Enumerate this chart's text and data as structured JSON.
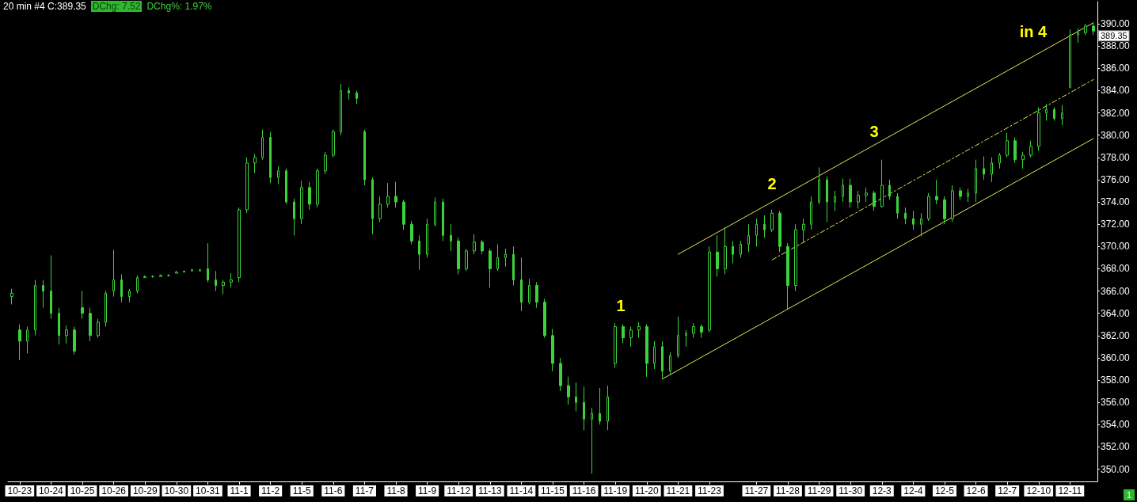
{
  "chart_data": {
    "type": "candlestick",
    "title": "20 min #4 C:389.35",
    "subtitle": "DChg: 7.52",
    "color": "#3cd23c",
    "categories": [
      null,
      "10-23",
      null,
      null,
      null,
      "10-24",
      null,
      null,
      null,
      "10-25",
      null,
      null,
      null,
      "10-26",
      null,
      null,
      null,
      "10-29",
      null,
      null,
      null,
      "10-30",
      null,
      null,
      null,
      "10-31",
      null,
      null,
      null,
      "11-1",
      null,
      null,
      null,
      "11-2",
      null,
      null,
      null,
      "11-5",
      null,
      null,
      null,
      "11-6",
      null,
      null,
      null,
      "11-7",
      null,
      null,
      null,
      "11-8",
      null,
      null,
      null,
      "11-9",
      null,
      null,
      null,
      "11-12",
      null,
      null,
      null,
      "11-13",
      null,
      null,
      null,
      "11-14",
      null,
      null,
      null,
      "11-15",
      null,
      null,
      null,
      "11-16",
      null,
      null,
      null,
      "11-19",
      null,
      null,
      null,
      "11-20",
      null,
      null,
      null,
      "11-21",
      null,
      null,
      null,
      "11-23",
      null,
      null,
      null,
      null,
      null,
      "11-27",
      null,
      null,
      null,
      "11-28",
      null,
      null,
      null,
      "11-29",
      null,
      null,
      null,
      "11-30",
      null,
      null,
      null,
      "12-3",
      null,
      null,
      null,
      "12-4",
      null,
      null,
      null,
      "12-5",
      null,
      null,
      null,
      "12-6",
      null,
      null,
      null,
      "12-7",
      null,
      null,
      null,
      "12-10",
      null,
      null,
      null,
      "12-11",
      null,
      null,
      null
    ],
    "ohlc": [
      [
        365.5,
        366.2,
        364.8,
        365.8
      ],
      [
        362.5,
        363.0,
        359.8,
        361.5
      ],
      [
        361.5,
        362.8,
        360.4,
        362.5
      ],
      [
        362.5,
        367.0,
        362.0,
        366.5
      ],
      [
        366.5,
        367.0,
        364.5,
        366.0
      ],
      [
        366.0,
        369.2,
        363.5,
        364.0
      ],
      [
        364.0,
        364.5,
        361.2,
        362.0
      ],
      [
        362.0,
        362.9,
        361.3,
        362.5
      ],
      [
        362.5,
        362.8,
        360.3,
        360.6
      ],
      [
        364.5,
        366.0,
        363.5,
        364.0
      ],
      [
        364.0,
        364.5,
        361.5,
        362.0
      ],
      [
        362.0,
        363.5,
        361.8,
        363.2
      ],
      [
        363.2,
        366.0,
        362.8,
        365.8
      ],
      [
        366.0,
        369.7,
        365.5,
        367.0
      ],
      [
        367.0,
        367.5,
        365.0,
        365.5
      ],
      [
        365.5,
        366.2,
        365.0,
        366.0
      ],
      [
        366.0,
        367.4,
        365.8,
        367.2
      ],
      [
        367.2,
        367.4,
        367.2,
        367.3
      ],
      [
        367.3,
        367.4,
        367.2,
        367.3
      ],
      [
        367.3,
        367.5,
        367.3,
        367.4
      ],
      [
        367.4,
        367.5,
        367.3,
        367.4
      ],
      [
        367.6,
        367.8,
        367.6,
        367.7
      ],
      [
        367.7,
        367.8,
        367.7,
        367.8
      ],
      [
        367.8,
        368.0,
        367.8,
        367.9
      ],
      [
        367.8,
        368.0,
        367.8,
        367.9
      ],
      [
        368.0,
        370.3,
        366.8,
        367.0
      ],
      [
        367.0,
        367.8,
        366.0,
        366.5
      ],
      [
        366.5,
        367.0,
        365.7,
        366.8
      ],
      [
        366.8,
        367.6,
        366.3,
        367.0
      ],
      [
        367.2,
        373.5,
        366.8,
        373.3
      ],
      [
        373.3,
        378.0,
        373.0,
        377.5
      ],
      [
        377.5,
        378.3,
        376.6,
        378.0
      ],
      [
        378.0,
        380.5,
        377.8,
        379.8
      ],
      [
        379.8,
        380.3,
        375.7,
        376.2
      ],
      [
        376.2,
        377.2,
        375.6,
        376.8
      ],
      [
        376.8,
        377.0,
        373.8,
        374.0
      ],
      [
        374.0,
        374.3,
        371.0,
        372.5
      ],
      [
        372.5,
        375.9,
        372.0,
        375.3
      ],
      [
        375.3,
        375.8,
        373.3,
        373.8
      ],
      [
        373.8,
        377.0,
        373.5,
        376.8
      ],
      [
        376.8,
        378.5,
        376.5,
        378.2
      ],
      [
        378.2,
        380.5,
        378.0,
        380.3
      ],
      [
        380.3,
        384.6,
        380.0,
        384.0
      ],
      [
        384.0,
        384.3,
        383.2,
        383.8
      ],
      [
        383.8,
        384.0,
        382.8,
        383.3
      ],
      [
        380.3,
        380.5,
        375.5,
        376.0
      ],
      [
        376.0,
        376.2,
        371.1,
        372.5
      ],
      [
        372.5,
        374.5,
        372.2,
        373.8
      ],
      [
        373.8,
        375.7,
        373.5,
        374.5
      ],
      [
        374.5,
        375.8,
        373.5,
        374.0
      ],
      [
        374.0,
        374.2,
        371.5,
        372.0
      ],
      [
        372.0,
        372.3,
        370.2,
        370.5
      ],
      [
        370.5,
        371.0,
        367.9,
        369.3
      ],
      [
        369.3,
        372.5,
        369.0,
        372.0
      ],
      [
        372.0,
        374.4,
        371.8,
        374.0
      ],
      [
        374.0,
        374.3,
        370.5,
        371.0
      ],
      [
        371.0,
        372.0,
        369.6,
        370.5
      ],
      [
        370.5,
        370.8,
        367.5,
        368.0
      ],
      [
        368.0,
        369.8,
        367.8,
        369.6
      ],
      [
        369.6,
        371.1,
        369.3,
        370.4
      ],
      [
        370.4,
        370.6,
        369.3,
        369.6
      ],
      [
        369.6,
        369.8,
        366.3,
        368.0
      ],
      [
        368.0,
        370.2,
        367.8,
        369.0
      ],
      [
        369.0,
        369.8,
        368.2,
        369.3
      ],
      [
        369.3,
        370.0,
        366.5,
        367.0
      ],
      [
        367.0,
        369.0,
        364.2,
        365.0
      ],
      [
        365.0,
        367.1,
        364.8,
        366.5
      ],
      [
        366.5,
        366.8,
        364.5,
        365.0
      ],
      [
        365.0,
        365.3,
        361.8,
        362.0
      ],
      [
        362.0,
        362.6,
        358.8,
        359.5
      ],
      [
        359.5,
        360.0,
        357.0,
        357.5
      ],
      [
        357.5,
        358.3,
        355.8,
        356.5
      ],
      [
        356.5,
        357.8,
        355.2,
        356.0
      ],
      [
        356.0,
        357.4,
        353.5,
        354.5
      ],
      [
        354.5,
        355.5,
        349.6,
        355.0
      ],
      [
        355.0,
        357.3,
        354.0,
        354.3
      ],
      [
        354.3,
        357.5,
        353.5,
        356.5
      ],
      [
        359.5,
        363.1,
        359.1,
        362.8
      ],
      [
        362.8,
        363.0,
        361.3,
        361.8
      ],
      [
        361.8,
        362.8,
        361.0,
        362.5
      ],
      [
        362.5,
        363.2,
        361.8,
        362.8
      ],
      [
        362.8,
        363.0,
        358.3,
        359.5
      ],
      [
        359.5,
        361.5,
        359.0,
        361.0
      ],
      [
        361.0,
        361.5,
        358.1,
        358.8
      ],
      [
        358.8,
        360.5,
        358.5,
        360.2
      ],
      [
        360.2,
        363.7,
        360.0,
        362.0
      ],
      [
        362.0,
        362.5,
        361.0,
        362.2
      ],
      [
        362.2,
        363.1,
        361.8,
        362.8
      ],
      [
        362.8,
        363.0,
        361.8,
        362.3
      ],
      [
        362.5,
        370.0,
        362.3,
        369.5
      ],
      [
        369.5,
        371.0,
        367.3,
        368.0
      ],
      [
        368.0,
        371.7,
        367.5,
        370.0
      ],
      [
        370.0,
        370.5,
        368.5,
        369.3
      ],
      [
        369.3,
        370.5,
        369.0,
        370.2
      ],
      [
        370.2,
        372.0,
        369.5,
        371.0
      ],
      [
        371.0,
        372.5,
        370.0,
        372.0
      ],
      [
        372.0,
        372.8,
        370.8,
        371.5
      ],
      [
        371.5,
        373.3,
        371.3,
        373.0
      ],
      [
        373.0,
        373.2,
        369.5,
        370.0
      ],
      [
        370.0,
        370.3,
        364.4,
        366.5
      ],
      [
        366.5,
        372.0,
        366.0,
        371.5
      ],
      [
        371.5,
        372.5,
        370.3,
        372.0
      ],
      [
        372.0,
        374.5,
        371.5,
        374.0
      ],
      [
        374.0,
        377.1,
        373.8,
        376.0
      ],
      [
        376.0,
        376.3,
        372.2,
        374.0
      ],
      [
        374.0,
        375.0,
        373.2,
        374.5
      ],
      [
        374.5,
        376.1,
        374.0,
        375.5
      ],
      [
        375.5,
        376.1,
        373.5,
        374.0
      ],
      [
        374.0,
        375.0,
        373.4,
        374.6
      ],
      [
        374.6,
        375.3,
        374.0,
        374.8
      ],
      [
        374.8,
        375.0,
        373.2,
        373.6
      ],
      [
        373.6,
        377.8,
        373.5,
        375.5
      ],
      [
        375.5,
        376.0,
        374.2,
        374.5
      ],
      [
        374.5,
        374.8,
        372.5,
        373.0
      ],
      [
        373.0,
        373.5,
        372.0,
        372.5
      ],
      [
        372.5,
        373.2,
        371.5,
        372.0
      ],
      [
        372.0,
        373.0,
        370.9,
        372.5
      ],
      [
        372.5,
        374.8,
        372.3,
        374.5
      ],
      [
        374.5,
        376.0,
        373.8,
        374.2
      ],
      [
        374.2,
        374.5,
        372.0,
        372.5
      ],
      [
        372.5,
        375.5,
        372.2,
        375.0
      ],
      [
        375.0,
        375.3,
        374.2,
        374.5
      ],
      [
        374.5,
        375.2,
        374.0,
        374.8
      ],
      [
        374.8,
        377.8,
        374.0,
        377.0
      ],
      [
        377.0,
        378.1,
        376.0,
        376.5
      ],
      [
        376.5,
        378.0,
        375.8,
        377.5
      ],
      [
        377.5,
        378.4,
        377.0,
        378.2
      ],
      [
        378.2,
        380.2,
        378.0,
        379.5
      ],
      [
        379.5,
        379.8,
        377.5,
        377.8
      ],
      [
        377.8,
        378.5,
        377.0,
        378.2
      ],
      [
        378.2,
        379.5,
        378.0,
        379.0
      ],
      [
        379.0,
        382.5,
        378.6,
        382.0
      ],
      [
        382.0,
        382.8,
        381.3,
        382.3
      ],
      [
        382.3,
        382.5,
        381.3,
        381.5
      ],
      [
        381.5,
        382.7,
        380.9,
        382.0
      ],
      [
        384.3,
        389.5,
        384.2,
        389.0
      ],
      [
        389.0,
        389.6,
        388.3,
        389.2
      ],
      [
        389.2,
        390.0,
        389.0,
        389.8
      ],
      [
        389.8,
        390.1,
        389.0,
        389.35
      ]
    ],
    "series": [
      {
        "type": "line",
        "color": "#e6e65a",
        "line_style": "solid",
        "values": [
          null,
          null,
          null,
          null,
          null,
          null,
          null,
          null,
          null,
          null,
          null,
          null,
          null,
          null,
          null,
          null,
          null,
          null,
          null,
          null,
          null,
          null,
          null,
          null,
          null,
          null,
          null,
          null,
          null,
          null,
          null,
          null,
          null,
          null,
          null,
          null,
          null,
          null,
          null,
          null,
          null,
          null,
          null,
          null,
          null,
          null,
          null,
          null,
          null,
          null,
          null,
          null,
          null,
          null,
          null,
          null,
          null,
          null,
          null,
          null,
          null,
          null,
          null,
          null,
          null,
          null,
          null,
          null,
          null,
          null,
          null,
          null,
          null,
          null,
          null,
          null,
          null,
          null,
          null,
          null,
          null,
          null,
          null,
          null,
          null,
          369.3,
          null,
          null,
          null,
          null,
          null,
          null,
          null,
          null,
          null,
          null,
          null,
          null,
          null,
          null,
          null,
          null,
          null,
          null,
          null,
          null,
          null,
          null,
          null,
          null,
          null,
          null,
          null,
          null,
          null,
          null,
          null,
          null,
          null,
          null,
          null,
          null,
          null,
          null,
          null,
          null,
          null,
          null,
          null,
          null,
          null,
          null,
          null,
          null,
          null,
          null,
          null,
          null,
          390.1
        ]
      },
      {
        "type": "line",
        "color": "#e6e65a",
        "line_style": "solid",
        "values": [
          null,
          null,
          null,
          null,
          null,
          null,
          null,
          null,
          null,
          null,
          null,
          null,
          null,
          null,
          null,
          null,
          null,
          null,
          null,
          null,
          null,
          null,
          null,
          null,
          null,
          null,
          null,
          null,
          null,
          null,
          null,
          null,
          null,
          null,
          null,
          null,
          null,
          null,
          null,
          null,
          null,
          null,
          null,
          null,
          null,
          null,
          null,
          null,
          null,
          null,
          null,
          null,
          null,
          null,
          null,
          null,
          null,
          null,
          null,
          null,
          null,
          null,
          null,
          null,
          null,
          null,
          null,
          null,
          null,
          null,
          null,
          null,
          null,
          null,
          null,
          null,
          null,
          null,
          null,
          null,
          null,
          null,
          null,
          358.1,
          null,
          null,
          null,
          null,
          null,
          null,
          null,
          null,
          null,
          null,
          null,
          null,
          null,
          null,
          null,
          null,
          null,
          null,
          null,
          null,
          null,
          null,
          null,
          null,
          null,
          null,
          null,
          null,
          null,
          null,
          null,
          null,
          null,
          null,
          null,
          null,
          null,
          null,
          null,
          null,
          null,
          null,
          null,
          null,
          null,
          null,
          null,
          null,
          null,
          null,
          null,
          null,
          null,
          null,
          379.7
        ]
      },
      {
        "type": "line",
        "color": "#e6e65a",
        "line_style": "dashed",
        "values": [
          null,
          null,
          null,
          null,
          null,
          null,
          null,
          null,
          null,
          null,
          null,
          null,
          null,
          null,
          null,
          null,
          null,
          null,
          null,
          null,
          null,
          null,
          null,
          null,
          null,
          null,
          null,
          null,
          null,
          null,
          null,
          null,
          null,
          null,
          null,
          null,
          null,
          null,
          null,
          null,
          null,
          null,
          null,
          null,
          null,
          null,
          null,
          null,
          null,
          null,
          null,
          null,
          null,
          null,
          null,
          null,
          null,
          null,
          null,
          null,
          null,
          null,
          null,
          null,
          null,
          null,
          null,
          null,
          null,
          null,
          null,
          null,
          null,
          null,
          null,
          null,
          null,
          null,
          null,
          null,
          null,
          null,
          null,
          null,
          null,
          null,
          null,
          null,
          null,
          null,
          null,
          null,
          null,
          null,
          null,
          null,
          null,
          368.8,
          null,
          null,
          null,
          null,
          null,
          null,
          null,
          null,
          null,
          null,
          null,
          null,
          null,
          null,
          null,
          null,
          null,
          null,
          null,
          null,
          null,
          null,
          null,
          null,
          null,
          null,
          null,
          null,
          null,
          null,
          null,
          null,
          null,
          null,
          null,
          null,
          null,
          null,
          null,
          null,
          385.0
        ]
      }
    ],
    "ylim": [
      348.9,
      392
    ],
    "yticks": [
      {
        "value": 350,
        "label": "350.00"
      },
      {
        "value": 352,
        "label": "352.00"
      },
      {
        "value": 354,
        "label": "354.00"
      },
      {
        "value": 356,
        "label": "356.00"
      },
      {
        "value": 358,
        "label": "358.00"
      },
      {
        "value": 360,
        "label": "360.00"
      },
      {
        "value": 362,
        "label": "362.00"
      },
      {
        "value": 364,
        "label": "364.00"
      },
      {
        "value": 366,
        "label": "366.00"
      },
      {
        "value": 368,
        "label": "368.00"
      },
      {
        "value": 370,
        "label": "370.00"
      },
      {
        "value": 372,
        "label": "372.00"
      },
      {
        "value": 374,
        "label": "374.00"
      },
      {
        "value": 376,
        "label": "376.00"
      },
      {
        "value": 378,
        "label": "378.00"
      },
      {
        "value": 380,
        "label": "380.00"
      },
      {
        "value": 382,
        "label": "382.00"
      },
      {
        "value": 384,
        "label": "384.00"
      },
      {
        "value": 386,
        "label": "386.00"
      },
      {
        "value": 388,
        "label": "388.00"
      },
      {
        "value": 390,
        "label": "390.00"
      }
    ],
    "annotations": [
      "1",
      "2",
      "3",
      "in 4",
      "389.35",
      "DChg%: 1.97%",
      "1"
    ]
  }
}
